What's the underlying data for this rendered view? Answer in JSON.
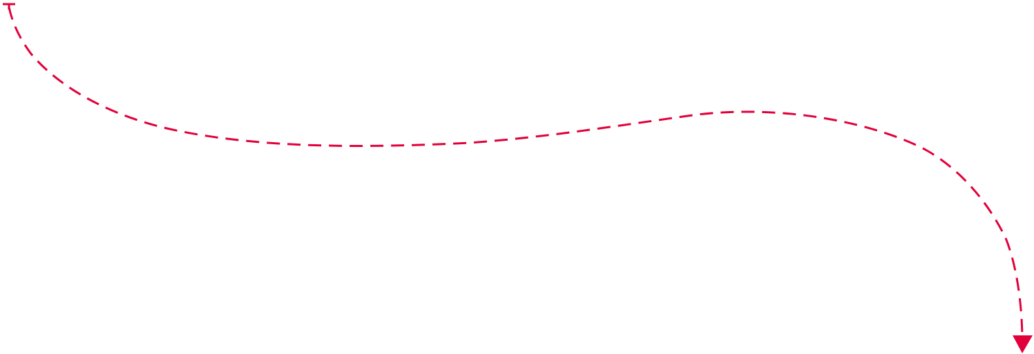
{
  "diagram": {
    "connector": {
      "style": "dashed",
      "color": "#e2003a",
      "start_marker": "tee",
      "end_marker": "arrowhead",
      "direction": "down"
    }
  }
}
